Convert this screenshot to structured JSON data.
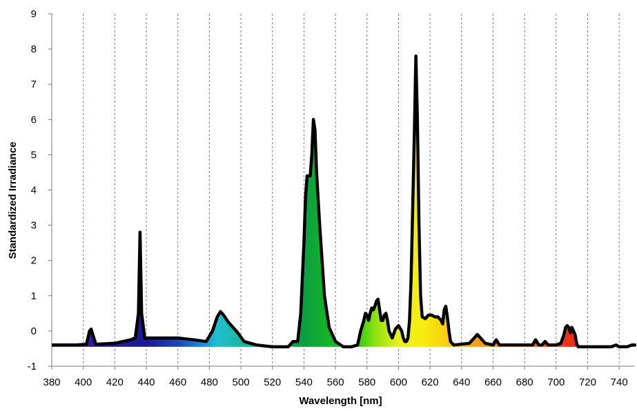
{
  "chart_data": {
    "type": "area",
    "title": "",
    "xlabel": "Wavelength [nm]",
    "ylabel": "Standardized Irradiance",
    "xlim": [
      380,
      750
    ],
    "ylim": [
      -1,
      9
    ],
    "xticks": [
      380,
      400,
      420,
      440,
      460,
      480,
      500,
      520,
      540,
      560,
      580,
      600,
      620,
      640,
      660,
      680,
      700,
      720,
      740
    ],
    "yticks": [
      -1,
      0,
      1,
      2,
      3,
      4,
      5,
      6,
      7,
      8,
      9
    ],
    "grid": "vertical dashed",
    "fill": "visible spectrum colors by wavelength",
    "line_color": "#000000",
    "series": [
      {
        "x": [
          380,
          395,
          402,
          404,
          405,
          406,
          408,
          420,
          430,
          433,
          435,
          436,
          437,
          439,
          445,
          460,
          470,
          478,
          482,
          485,
          487,
          489,
          492,
          495,
          498,
          502,
          510,
          520,
          530,
          533,
          536,
          538,
          540,
          541,
          542,
          543,
          544,
          545,
          546,
          547,
          548,
          550,
          553,
          556,
          560,
          565,
          570,
          574,
          576,
          578,
          579,
          580,
          581,
          582,
          583,
          584,
          585,
          586,
          587,
          588,
          589,
          590,
          591,
          592,
          593,
          594,
          596,
          598,
          600,
          602,
          603,
          604,
          605,
          606,
          607,
          608,
          609,
          610,
          611,
          612,
          613,
          614,
          615,
          617,
          619,
          621,
          623,
          625,
          627,
          628,
          629,
          630,
          631,
          632,
          633,
          635,
          645,
          648,
          650,
          652,
          655,
          660,
          662,
          664,
          670,
          680,
          685,
          687,
          689,
          691,
          693,
          695,
          700,
          703,
          705,
          706,
          707,
          708,
          709,
          710,
          711,
          712,
          713,
          714,
          716,
          720,
          735,
          738,
          740,
          745,
          748,
          750
        ],
        "y": [
          -0.4,
          -0.4,
          -0.38,
          0.0,
          0.05,
          -0.1,
          -0.38,
          -0.35,
          -0.25,
          -0.2,
          0.5,
          2.8,
          0.5,
          -0.2,
          -0.2,
          -0.2,
          -0.25,
          -0.3,
          0.0,
          0.4,
          0.55,
          0.45,
          0.25,
          0.1,
          -0.05,
          -0.3,
          -0.4,
          -0.45,
          -0.45,
          -0.3,
          -0.3,
          0.5,
          2.5,
          3.8,
          4.4,
          4.4,
          4.4,
          5.0,
          6.0,
          5.7,
          4.5,
          3.0,
          1.0,
          0.1,
          -0.3,
          -0.45,
          -0.45,
          -0.4,
          0.0,
          0.3,
          0.5,
          0.45,
          0.3,
          0.5,
          0.65,
          0.6,
          0.7,
          0.85,
          0.9,
          0.6,
          0.3,
          0.3,
          0.45,
          0.5,
          0.3,
          0.0,
          -0.2,
          0.05,
          0.15,
          0.0,
          -0.2,
          -0.3,
          -0.3,
          -0.2,
          0.3,
          1.5,
          3.5,
          5.5,
          7.8,
          6.0,
          3.0,
          1.0,
          0.4,
          0.35,
          0.45,
          0.45,
          0.4,
          0.4,
          0.3,
          0.2,
          0.6,
          0.7,
          0.4,
          0.0,
          -0.3,
          -0.4,
          -0.35,
          -0.2,
          -0.1,
          -0.2,
          -0.35,
          -0.4,
          -0.25,
          -0.4,
          -0.4,
          -0.4,
          -0.4,
          -0.25,
          -0.4,
          -0.4,
          -0.3,
          -0.4,
          -0.4,
          -0.35,
          -0.1,
          0.1,
          0.15,
          0.1,
          -0.05,
          0.1,
          0.0,
          -0.1,
          -0.35,
          -0.45,
          -0.45,
          -0.45,
          -0.45,
          -0.4,
          -0.45,
          -0.45,
          -0.4,
          -0.4
        ]
      }
    ]
  }
}
